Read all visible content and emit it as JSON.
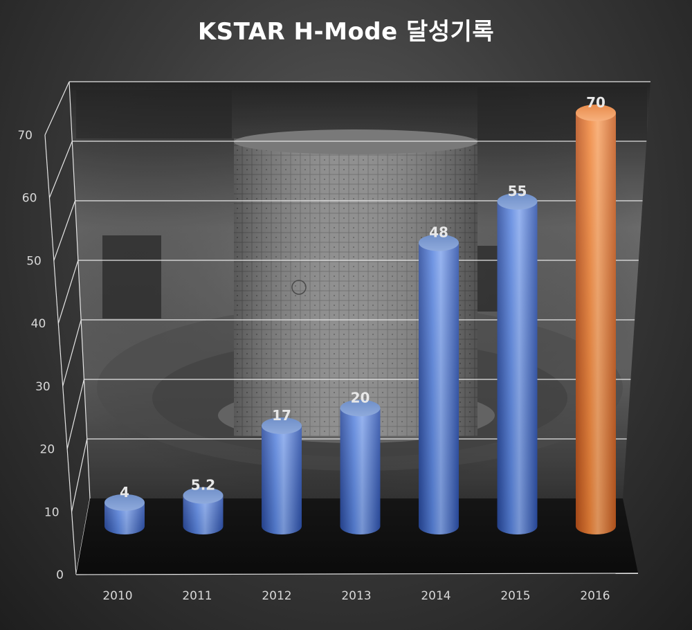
{
  "chart_data": {
    "type": "bar",
    "title": "KSTAR H-Mode 달성기록",
    "categories": [
      "2010",
      "2011",
      "2012",
      "2013",
      "2014",
      "2015",
      "2016"
    ],
    "values": [
      4,
      5.2,
      17,
      20,
      48,
      55,
      70
    ],
    "data_labels": [
      "4",
      "5.2",
      "17",
      "20",
      "48",
      "55",
      "70"
    ],
    "ylim": [
      0,
      70
    ],
    "y_ticks": [
      "0",
      "10",
      "20",
      "30",
      "40",
      "50",
      "60",
      "70"
    ],
    "xlabel": "",
    "ylabel": "",
    "grid": true,
    "style": "3d-cylinder",
    "bar_colors": [
      "#4a78d4",
      "#4a78d4",
      "#4a78d4",
      "#4a78d4",
      "#4a78d4",
      "#4a78d4",
      "#ea7a2e"
    ],
    "highlight_color": "#ea7a2e",
    "series_color": "#4a78d4"
  }
}
